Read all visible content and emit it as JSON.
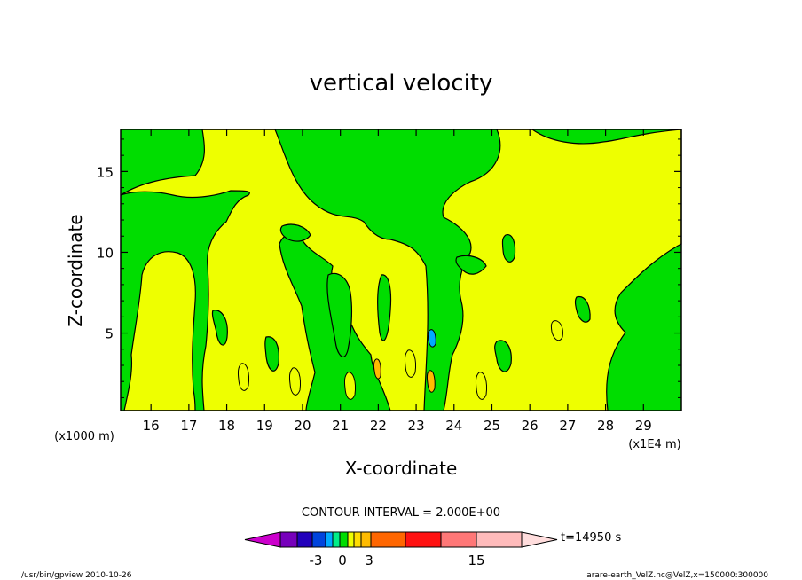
{
  "chart_data": {
    "type": "heatmap",
    "title": "vertical velocity",
    "xlabel": "X-coordinate",
    "ylabel": "Z-coordinate",
    "x_unit": "(x1E4 m)",
    "y_unit": "(x1000 m)",
    "xlim": [
      15.2,
      30.0
    ],
    "ylim": [
      0.2,
      17.6
    ],
    "x_ticks": [
      "16",
      "17",
      "18",
      "19",
      "20",
      "21",
      "22",
      "23",
      "24",
      "25",
      "26",
      "27",
      "28",
      "29"
    ],
    "y_ticks": [
      "5",
      "10",
      "15"
    ],
    "contour_interval_text": "CONTOUR INTERVAL = 2.000E+00",
    "time_text": "t=14950 s",
    "colorbar": {
      "colors": [
        "#cc00cc",
        "#7700bb",
        "#2200bb",
        "#0044dd",
        "#00aaff",
        "#00ee88",
        "#00dd00",
        "#eeff00",
        "#ffdd00",
        "#ffbb00",
        "#ff6600",
        "#ff1111",
        "#ff7777",
        "#ffbbbb",
        "#ffdddd"
      ],
      "labels": [
        "-3",
        "0",
        "3",
        "15"
      ]
    },
    "fields": {
      "zero_or_below_color": "#00dd00",
      "above_zero_color": "#eeff00"
    },
    "footer_left": "/usr/bin/gpview   2010-10-26",
    "footer_right": "arare-earth_VelZ.nc@VelZ,x=150000:300000"
  }
}
